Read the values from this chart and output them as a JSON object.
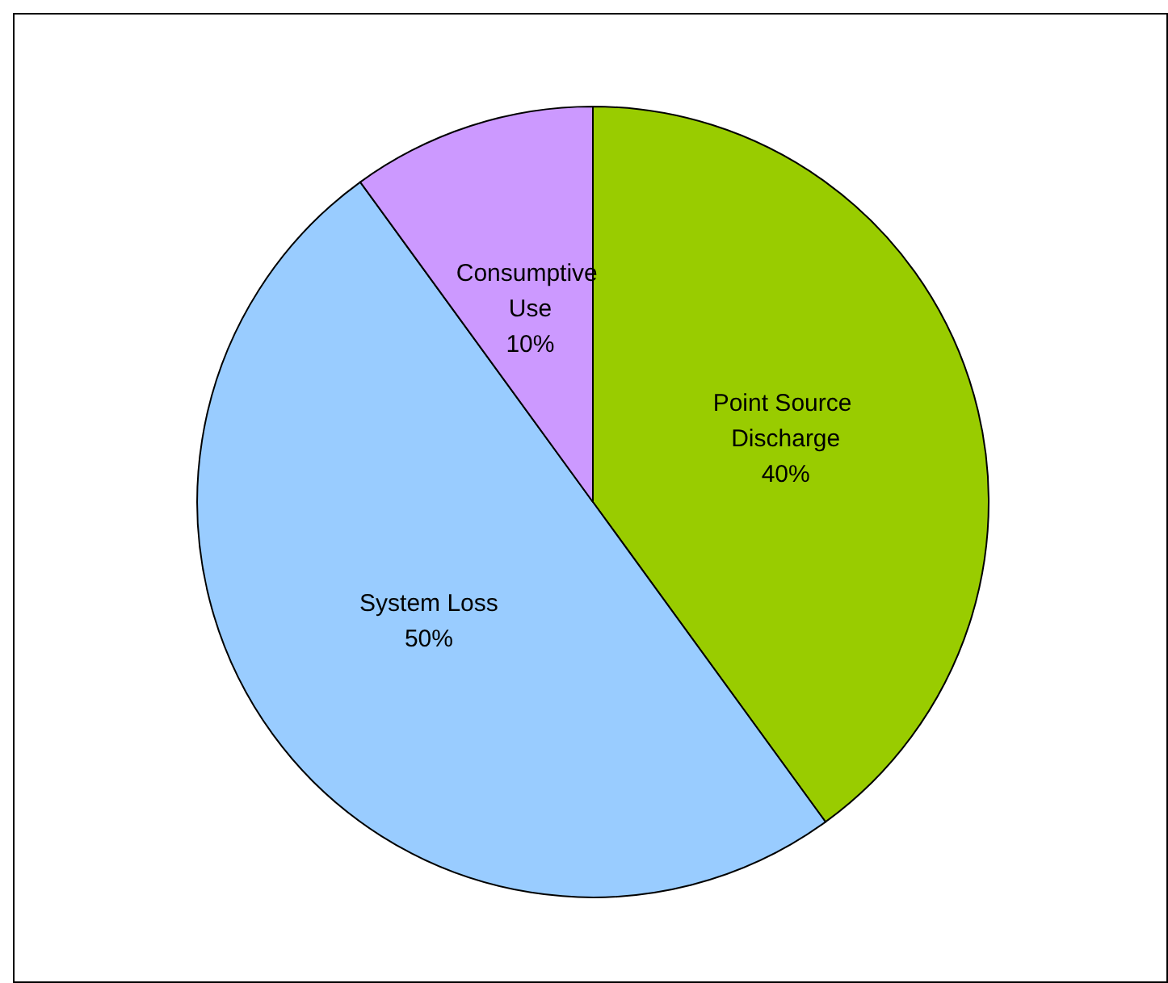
{
  "chart_data": {
    "type": "pie",
    "categories": [
      "Point Source Discharge",
      "System Loss",
      "Consumptive Use"
    ],
    "values": [
      40,
      50,
      10
    ],
    "value_labels": [
      "40%",
      "50%",
      "10%"
    ],
    "colors": [
      "#99cc00",
      "#99ccff",
      "#cc99ff"
    ]
  }
}
